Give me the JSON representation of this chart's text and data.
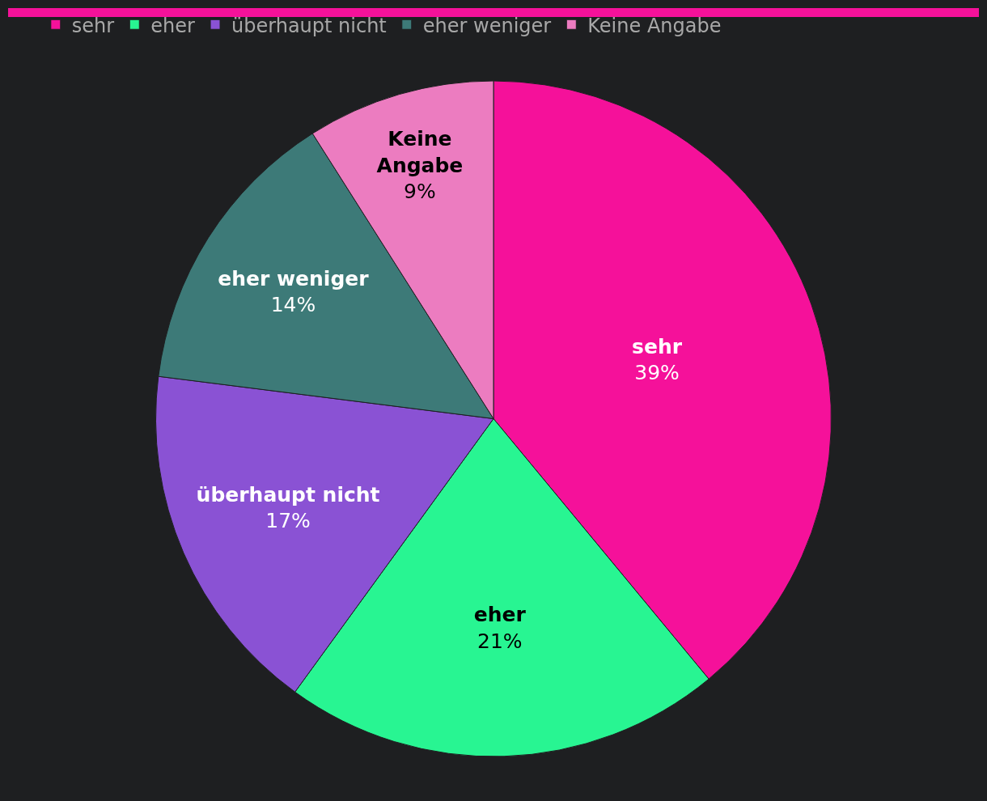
{
  "chart_data": {
    "type": "pie",
    "categories": [
      "sehr",
      "eher",
      "überhaupt nicht",
      "eher weniger",
      "Keine Angabe"
    ],
    "values": [
      39,
      21,
      17,
      14,
      9
    ],
    "value_labels": [
      "39%",
      "21%",
      "17%",
      "14%",
      "9%"
    ],
    "colors": [
      "#f5119a",
      "#28f592",
      "#8a52d4",
      "#3d7a78",
      "#ec7cc0"
    ],
    "legend": "top left"
  }
}
